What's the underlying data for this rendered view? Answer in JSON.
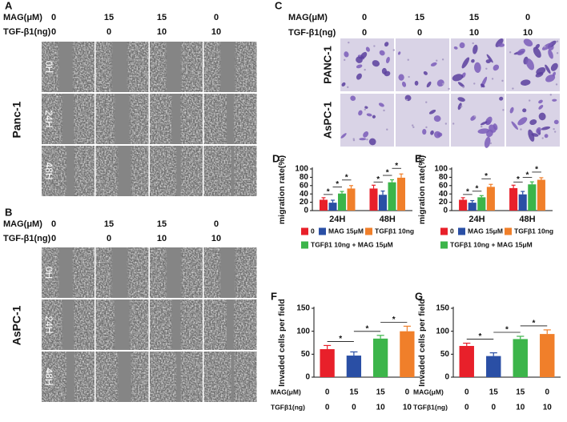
{
  "panel_a": {
    "label": "A",
    "header": [
      {
        "name": "MAG(μM)",
        "values": [
          0,
          15,
          15,
          0
        ]
      },
      {
        "name": "TGF-β1(ng)",
        "values": [
          0,
          0,
          10,
          10
        ]
      }
    ],
    "cell_line": "Panc-1",
    "times": [
      "0H",
      "24H",
      "48H"
    ]
  },
  "panel_b": {
    "label": "B",
    "header": [
      {
        "name": "MAG(μM)",
        "values": [
          0,
          15,
          15,
          0
        ]
      },
      {
        "name": "TGF-β1(ng)",
        "values": [
          0,
          0,
          10,
          10
        ]
      }
    ],
    "cell_line": "AsPC-1",
    "times": [
      "0H",
      "24H",
      "48H"
    ]
  },
  "panel_c": {
    "label": "C",
    "header": [
      {
        "name": "MAG(μM)",
        "values": [
          0,
          15,
          15,
          0
        ]
      },
      {
        "name": "TGF-β1(ng)",
        "values": [
          0,
          0,
          10,
          10
        ]
      }
    ],
    "rows": [
      "PANC-1",
      "AsPC-1"
    ]
  },
  "chart_data": [
    {
      "type": "bar",
      "label": "D",
      "ylabel": "migration rate(%)",
      "categories": [
        "24H",
        "48H"
      ],
      "series": [
        {
          "name": "0",
          "color": "#e8202a",
          "values": [
            26,
            53
          ],
          "errors": [
            5,
            8
          ]
        },
        {
          "name": "MAG 15μM",
          "color": "#2a4fa5",
          "values": [
            19,
            38
          ],
          "errors": [
            6,
            9
          ]
        },
        {
          "name": "TGFβ1 10ng + MAG 15μM",
          "color": "#3cb54a",
          "values": [
            41,
            68
          ],
          "errors": [
            5,
            6
          ]
        },
        {
          "name": "TGFβ1 10ng",
          "color": "#f07f2a",
          "values": [
            53,
            79
          ],
          "errors": [
            7,
            9
          ]
        }
      ],
      "ylim": [
        0,
        100
      ],
      "yticks": [
        0,
        20,
        40,
        60,
        80,
        100
      ],
      "sig_label": "*"
    },
    {
      "type": "bar",
      "label": "E",
      "ylabel": "migration rate(%)",
      "categories": [
        "24H",
        "48H"
      ],
      "series": [
        {
          "name": "0",
          "color": "#e8202a",
          "values": [
            26,
            54
          ],
          "errors": [
            5,
            7
          ]
        },
        {
          "name": "MAG 15μM",
          "color": "#2a4fa5",
          "values": [
            19,
            39
          ],
          "errors": [
            5,
            7
          ]
        },
        {
          "name": "TGFβ1 10ng + MAG 15μM",
          "color": "#3cb54a",
          "values": [
            32,
            63
          ],
          "errors": [
            4,
            6
          ]
        },
        {
          "name": "TGFβ1 10ng",
          "color": "#f07f2a",
          "values": [
            57,
            74
          ],
          "errors": [
            6,
            5
          ]
        }
      ],
      "ylim": [
        0,
        100
      ],
      "yticks": [
        0,
        20,
        40,
        60,
        80,
        100
      ],
      "sig_label": "*"
    },
    {
      "type": "bar",
      "label": "F",
      "ylabel": "Invaded cells per field",
      "categories": [
        null,
        null,
        null,
        null
      ],
      "values": [
        61,
        47,
        84,
        100
      ],
      "errors": [
        8,
        8,
        7,
        11
      ],
      "colors": [
        "#e8202a",
        "#2a4fa5",
        "#3cb54a",
        "#f07f2a"
      ],
      "conditions": [
        {
          "name": "MAG(μM)",
          "values": [
            0,
            15,
            15,
            0
          ]
        },
        {
          "name": "TGFβ1(ng)",
          "values": [
            0,
            0,
            10,
            10
          ]
        }
      ],
      "ylim": [
        0,
        150
      ],
      "yticks": [
        0,
        50,
        100,
        150
      ],
      "sig_label": "*"
    },
    {
      "type": "bar",
      "label": "G",
      "ylabel": "Invaded cells per field",
      "categories": [
        null,
        null,
        null,
        null
      ],
      "values": [
        68,
        46,
        83,
        94
      ],
      "errors": [
        6,
        7,
        6,
        9
      ],
      "colors": [
        "#e8202a",
        "#2a4fa5",
        "#3cb54a",
        "#f07f2a"
      ],
      "conditions": [
        {
          "name": "MAG(μM)",
          "values": [
            0,
            15,
            15,
            0
          ]
        },
        {
          "name": "TGFβ1(ng)",
          "values": [
            0,
            0,
            10,
            10
          ]
        }
      ],
      "ylim": [
        0,
        150
      ],
      "yticks": [
        0,
        50,
        100,
        150
      ],
      "sig_label": "*"
    }
  ]
}
